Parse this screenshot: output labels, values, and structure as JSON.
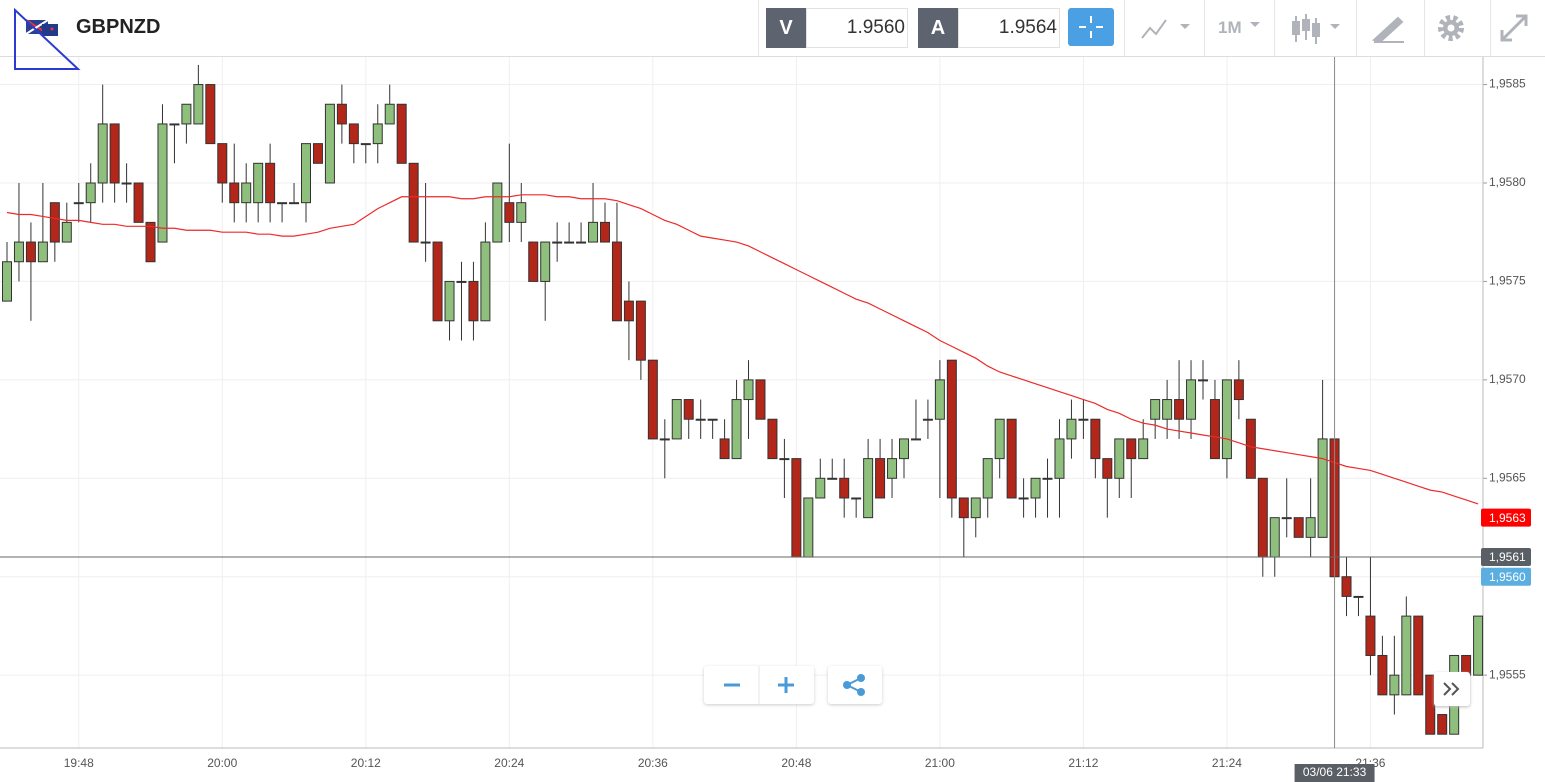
{
  "header": {
    "symbol": "GBPNZD",
    "bid_label": "V",
    "bid": "1.9560",
    "ask_label": "A",
    "ask": "1.9564",
    "timeframe": "1M"
  },
  "chart_data": {
    "type": "candlestick",
    "categories": [
      null,
      null,
      null,
      null,
      null,
      null,
      "19:48",
      null,
      null,
      null,
      null,
      null,
      null,
      null,
      null,
      null,
      null,
      null,
      "20:00",
      null,
      null,
      null,
      null,
      null,
      null,
      null,
      null,
      null,
      null,
      null,
      "20:12",
      null,
      null,
      null,
      null,
      null,
      null,
      null,
      null,
      null,
      null,
      null,
      "20:24",
      null,
      null,
      null,
      null,
      null,
      null,
      null,
      null,
      null,
      null,
      null,
      "20:36",
      null,
      null,
      null,
      null,
      null,
      null,
      null,
      null,
      null,
      null,
      null,
      "20:48",
      null,
      null,
      null,
      null,
      null,
      null,
      null,
      null,
      null,
      null,
      null,
      "21:00",
      null,
      null,
      null,
      null,
      null,
      null,
      null,
      null,
      null,
      null,
      null,
      "21:12",
      null,
      null,
      null,
      null,
      null,
      null,
      null,
      null,
      null,
      null,
      null,
      "21:24",
      null,
      null,
      null,
      null,
      null,
      null,
      null,
      null,
      null,
      null,
      null,
      "21:36",
      null,
      null,
      null,
      null,
      null,
      null,
      null,
      null,
      null
    ],
    "open": [
      1.9574,
      1.9576,
      1.9577,
      1.9576,
      1.9579,
      1.9577,
      1.9579,
      1.9579,
      1.958,
      1.9583,
      1.958,
      1.958,
      1.9578,
      1.9577,
      1.9583,
      1.9583,
      1.9583,
      1.9585,
      1.9582,
      1.958,
      1.9579,
      1.9579,
      1.9581,
      1.9579,
      1.9579,
      1.9579,
      1.9582,
      1.958,
      1.9584,
      1.9583,
      1.9582,
      1.9582,
      1.9583,
      1.9584,
      1.9581,
      1.9577,
      1.9577,
      1.9573,
      1.9575,
      1.9575,
      1.9573,
      1.9577,
      1.9579,
      1.9578,
      1.9577,
      1.9575,
      1.9577,
      1.9577,
      1.9577,
      1.9577,
      1.9578,
      1.9577,
      1.9574,
      1.9574,
      1.9571,
      1.9567,
      1.9567,
      1.9569,
      1.9568,
      1.9568,
      1.9567,
      1.9566,
      1.9569,
      1.957,
      1.9568,
      1.9566,
      1.9566,
      1.9561,
      1.9564,
      1.9565,
      1.9565,
      1.9564,
      1.9563,
      1.9566,
      1.9565,
      1.9566,
      1.9567,
      1.9568,
      1.9568,
      1.9571,
      1.9564,
      1.9563,
      1.9564,
      1.9566,
      1.9568,
      1.9564,
      1.9564,
      1.9565,
      1.9565,
      1.9567,
      1.9568,
      1.9568,
      1.9566,
      1.9565,
      1.9567,
      1.9566,
      1.9568,
      1.9568,
      1.9569,
      1.9568,
      1.957,
      1.9569,
      1.9566,
      1.957,
      1.9568,
      1.9565,
      1.9561,
      1.9563,
      1.9563,
      1.9562,
      1.9562,
      1.9567,
      1.956,
      1.9559,
      1.9558,
      1.9556,
      1.9554,
      1.9554,
      1.9558,
      1.9555,
      1.9553,
      1.9552,
      1.9556,
      1.9555
    ],
    "high": [
      1.9577,
      1.958,
      1.9578,
      1.958,
      1.9579,
      1.9579,
      1.958,
      1.9581,
      1.9585,
      1.9583,
      1.9581,
      1.958,
      1.9578,
      1.9584,
      1.9583,
      1.9584,
      1.9586,
      1.9585,
      1.9582,
      1.9582,
      1.9581,
      1.9581,
      1.9582,
      1.9579,
      1.958,
      1.9582,
      1.9582,
      1.9584,
      1.9585,
      1.9583,
      1.9582,
      1.9584,
      1.9585,
      1.9584,
      1.9581,
      1.958,
      1.9577,
      1.9575,
      1.9576,
      1.9576,
      1.9578,
      1.958,
      1.9582,
      1.958,
      1.9577,
      1.9577,
      1.9578,
      1.9578,
      1.9578,
      1.958,
      1.9579,
      1.9579,
      1.9575,
      1.9574,
      1.9571,
      1.9568,
      1.9569,
      1.9569,
      1.9569,
      1.9568,
      1.9568,
      1.957,
      1.9571,
      1.957,
      1.9568,
      1.9567,
      1.9566,
      1.9564,
      1.9566,
      1.9566,
      1.9566,
      1.9564,
      1.9567,
      1.9567,
      1.9567,
      1.9567,
      1.9569,
      1.9569,
      1.9571,
      1.9571,
      1.9564,
      1.9564,
      1.9566,
      1.9568,
      1.9568,
      1.9565,
      1.9565,
      1.9566,
      1.9568,
      1.9569,
      1.9569,
      1.9568,
      1.9566,
      1.9567,
      1.9567,
      1.9568,
      1.9569,
      1.957,
      1.9571,
      1.9571,
      1.9571,
      1.957,
      1.957,
      1.9571,
      1.9568,
      1.9565,
      1.9563,
      1.9565,
      1.9563,
      1.9565,
      1.957,
      1.9567,
      1.9561,
      1.9559,
      1.9561,
      1.9557,
      1.9557,
      1.9559,
      1.9558,
      1.9555,
      1.9553,
      1.9556,
      1.9556,
      1.9558
    ],
    "low": [
      1.9574,
      1.9575,
      1.9573,
      1.9576,
      1.9576,
      1.9577,
      1.9578,
      1.9578,
      1.9579,
      1.9579,
      1.9579,
      1.9578,
      1.9576,
      1.9577,
      1.9581,
      1.9582,
      1.9583,
      1.9582,
      1.9579,
      1.9578,
      1.9578,
      1.9578,
      1.9578,
      1.9578,
      1.9579,
      1.9578,
      1.9581,
      1.958,
      1.9582,
      1.9581,
      1.9581,
      1.9581,
      1.9583,
      1.9581,
      1.9577,
      1.9576,
      1.9573,
      1.9572,
      1.9572,
      1.9572,
      1.9573,
      1.9577,
      1.9577,
      1.9577,
      1.9575,
      1.9573,
      1.9576,
      1.9577,
      1.9577,
      1.9577,
      1.9577,
      1.9573,
      1.9571,
      1.957,
      1.9567,
      1.9565,
      1.9567,
      1.9567,
      1.9567,
      1.9567,
      1.9566,
      1.9566,
      1.9567,
      1.9568,
      1.9566,
      1.9564,
      1.9561,
      1.9561,
      1.9564,
      1.9565,
      1.9563,
      1.9563,
      1.9563,
      1.9564,
      1.9564,
      1.9565,
      1.9567,
      1.9567,
      1.9564,
      1.9563,
      1.9561,
      1.9562,
      1.9563,
      1.9565,
      1.9564,
      1.9563,
      1.9563,
      1.9563,
      1.9563,
      1.9566,
      1.9567,
      1.9565,
      1.9563,
      1.9564,
      1.9564,
      1.9566,
      1.9567,
      1.9567,
      1.9567,
      1.9567,
      1.9569,
      1.9566,
      1.9565,
      1.9568,
      1.9565,
      1.956,
      1.956,
      1.9562,
      1.9562,
      1.9561,
      1.9562,
      1.956,
      1.9558,
      1.9558,
      1.9555,
      1.9554,
      1.9553,
      1.9554,
      1.9554,
      1.9552,
      1.9552,
      1.9552,
      1.9555,
      1.9555
    ],
    "close": [
      1.9576,
      1.9577,
      1.9576,
      1.9577,
      1.9577,
      1.9578,
      1.9579,
      1.958,
      1.9583,
      1.958,
      1.958,
      1.9578,
      1.9576,
      1.9583,
      1.9583,
      1.9584,
      1.9585,
      1.9582,
      1.958,
      1.9579,
      1.958,
      1.9581,
      1.9579,
      1.9579,
      1.9579,
      1.9582,
      1.9581,
      1.9584,
      1.9583,
      1.9582,
      1.9582,
      1.9583,
      1.9584,
      1.9581,
      1.9577,
      1.9577,
      1.9573,
      1.9575,
      1.9575,
      1.9573,
      1.9577,
      1.958,
      1.9578,
      1.9579,
      1.9575,
      1.9577,
      1.9577,
      1.9577,
      1.9577,
      1.9578,
      1.9577,
      1.9573,
      1.9573,
      1.9571,
      1.9567,
      1.9567,
      1.9569,
      1.9568,
      1.9568,
      1.9568,
      1.9566,
      1.9569,
      1.957,
      1.9568,
      1.9566,
      1.9566,
      1.9561,
      1.9564,
      1.9565,
      1.9565,
      1.9564,
      1.9564,
      1.9566,
      1.9564,
      1.9566,
      1.9567,
      1.9567,
      1.9568,
      1.957,
      1.9564,
      1.9563,
      1.9564,
      1.9566,
      1.9568,
      1.9564,
      1.9564,
      1.9565,
      1.9565,
      1.9567,
      1.9568,
      1.9568,
      1.9566,
      1.9565,
      1.9567,
      1.9566,
      1.9567,
      1.9569,
      1.9569,
      1.9568,
      1.957,
      1.957,
      1.9566,
      1.957,
      1.9569,
      1.9565,
      1.9561,
      1.9563,
      1.9563,
      1.9562,
      1.9563,
      1.9567,
      1.956,
      1.9559,
      1.9559,
      1.9556,
      1.9554,
      1.9555,
      1.9558,
      1.9554,
      1.9552,
      1.9552,
      1.9556,
      1.9555,
      1.9558
    ],
    "up_color": "#8fbf7c",
    "down_color": "#b3261a",
    "line_color": "#ee2a2a",
    "line_values": [
      1.95785,
      1.95784,
      1.95784,
      1.95783,
      1.95782,
      1.95781,
      1.95781,
      1.9578,
      1.95779,
      1.95779,
      1.95778,
      1.95778,
      1.95778,
      1.95777,
      1.95777,
      1.95776,
      1.95776,
      1.95776,
      1.95775,
      1.95775,
      1.95775,
      1.95774,
      1.95774,
      1.95773,
      1.95773,
      1.95774,
      1.95775,
      1.95777,
      1.95778,
      1.95779,
      1.95783,
      1.95787,
      1.9579,
      1.95793,
      1.95793,
      1.95793,
      1.95793,
      1.95793,
      1.95792,
      1.95792,
      1.95793,
      1.95793,
      1.95793,
      1.95794,
      1.95794,
      1.95794,
      1.95793,
      1.95793,
      1.95792,
      1.95792,
      1.95792,
      1.95791,
      1.95789,
      1.95787,
      1.95784,
      1.95781,
      1.95779,
      1.95776,
      1.95773,
      1.95772,
      1.95771,
      1.9577,
      1.95768,
      1.95765,
      1.95762,
      1.95759,
      1.95756,
      1.95753,
      1.9575,
      1.95747,
      1.95744,
      1.95741,
      1.95739,
      1.95736,
      1.95733,
      1.9573,
      1.95727,
      1.95724,
      1.9572,
      1.95717,
      1.95714,
      1.95711,
      1.95707,
      1.95704,
      1.95702,
      1.957,
      1.95698,
      1.95696,
      1.95694,
      1.95692,
      1.9569,
      1.95688,
      1.95685,
      1.95683,
      1.9568,
      1.95678,
      1.95677,
      1.95675,
      1.95674,
      1.95673,
      1.95672,
      1.95671,
      1.9567,
      1.95668,
      1.95666,
      1.95665,
      1.95664,
      1.95663,
      1.95662,
      1.95661,
      1.9566,
      1.95658,
      1.95656,
      1.95655,
      1.95654,
      1.95652,
      1.9565,
      1.95648,
      1.95646,
      1.95644,
      1.95643,
      1.95641,
      1.95639,
      1.95637
    ],
    "ylim": [
      1.95513,
      1.95864
    ],
    "yticks": [
      {
        "value": 1.9555,
        "label": "1,9555"
      },
      {
        "value": 1.956,
        "label": "1,9560"
      },
      {
        "value": 1.9565,
        "label": "1,9565"
      },
      {
        "value": 1.957,
        "label": "1,9570"
      },
      {
        "value": 1.9575,
        "label": "1,9575"
      },
      {
        "value": 1.958,
        "label": "1,9580"
      },
      {
        "value": 1.9585,
        "label": "1,9585"
      }
    ],
    "grid": true,
    "price_labels": [
      {
        "value": 1.9563,
        "label": "1,9563",
        "color": "#ff0000"
      },
      {
        "value": 1.9561,
        "label": "1,9561",
        "color": "#5a5f66"
      },
      {
        "value": 1.956,
        "label": "1,9560",
        "color": "#5aaee0"
      }
    ],
    "crosshair_label": "03/06 21:33",
    "crosshair_index": 111
  }
}
